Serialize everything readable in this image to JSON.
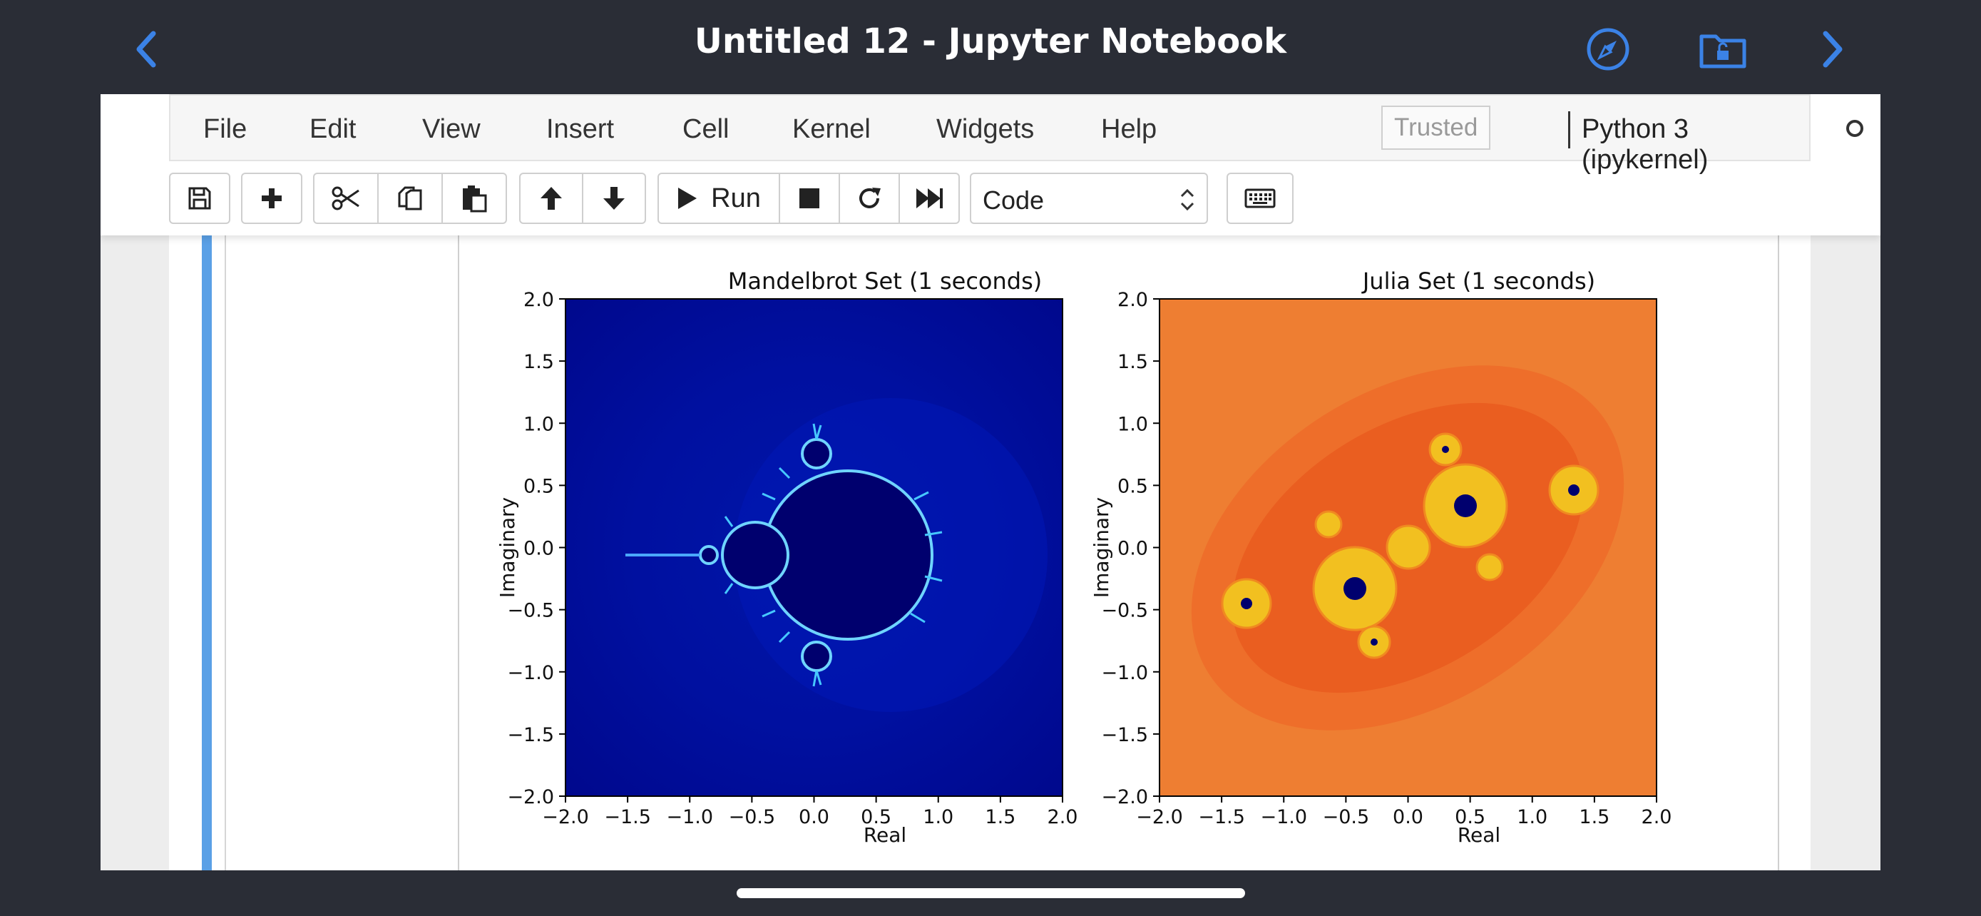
{
  "browser": {
    "title": "Untitled 12 - Jupyter Notebook",
    "back_icon": "chevron-left-icon",
    "forward_icon": "chevron-right-icon",
    "compass_icon": "compass-icon",
    "folder_icon": "folder-lock-icon",
    "accent": "#3b82e6"
  },
  "menubar": {
    "items": [
      "File",
      "Edit",
      "View",
      "Insert",
      "Cell",
      "Kernel",
      "Widgets",
      "Help"
    ],
    "trusted": "Trusted",
    "kernel": "Python 3 (ipykernel)"
  },
  "toolbar": {
    "run_label": "Run",
    "cell_type": "Code",
    "icons": [
      "save-icon",
      "plus-icon",
      "cut-icon",
      "copy-icon",
      "paste-icon",
      "arrow-up-icon",
      "arrow-down-icon",
      "play-icon",
      "stop-icon",
      "restart-icon",
      "fast-forward-icon",
      "keyboard-icon"
    ]
  },
  "chart_data": [
    {
      "type": "heatmap",
      "title": "Mandelbrot Set (1 seconds)",
      "xlabel": "Real",
      "ylabel": "Imaginary",
      "xlim": [
        -2.0,
        2.0
      ],
      "ylim": [
        -2.0,
        2.0
      ],
      "xticks": [
        "−2.0",
        "−1.5",
        "−1.0",
        "−0.5",
        "0.0",
        "0.5",
        "1.0",
        "1.5",
        "2.0"
      ],
      "yticks": [
        "2.0",
        "1.5",
        "1.0",
        "0.5",
        "0.0",
        "−0.5",
        "−1.0",
        "−1.5",
        "−2.0"
      ],
      "colormap": "jet",
      "background_color": "#00108e",
      "set_color": "#000069"
    },
    {
      "type": "heatmap",
      "title": "Julia Set (1 seconds)",
      "xlabel": "Real",
      "ylabel": "Imaginary",
      "xlim": [
        -2.0,
        2.0
      ],
      "ylim": [
        -2.0,
        2.0
      ],
      "xticks": [
        "−2.0",
        "−1.5",
        "−1.0",
        "−0.5",
        "0.0",
        "0.5",
        "1.0",
        "1.5",
        "2.0"
      ],
      "yticks": [
        "2.0",
        "1.5",
        "1.0",
        "0.5",
        "0.0",
        "−0.5",
        "−1.0",
        "−1.5",
        "−2.0"
      ],
      "colormap": "jet",
      "background_color": "#ee7f32",
      "set_color": "#00006e"
    }
  ]
}
